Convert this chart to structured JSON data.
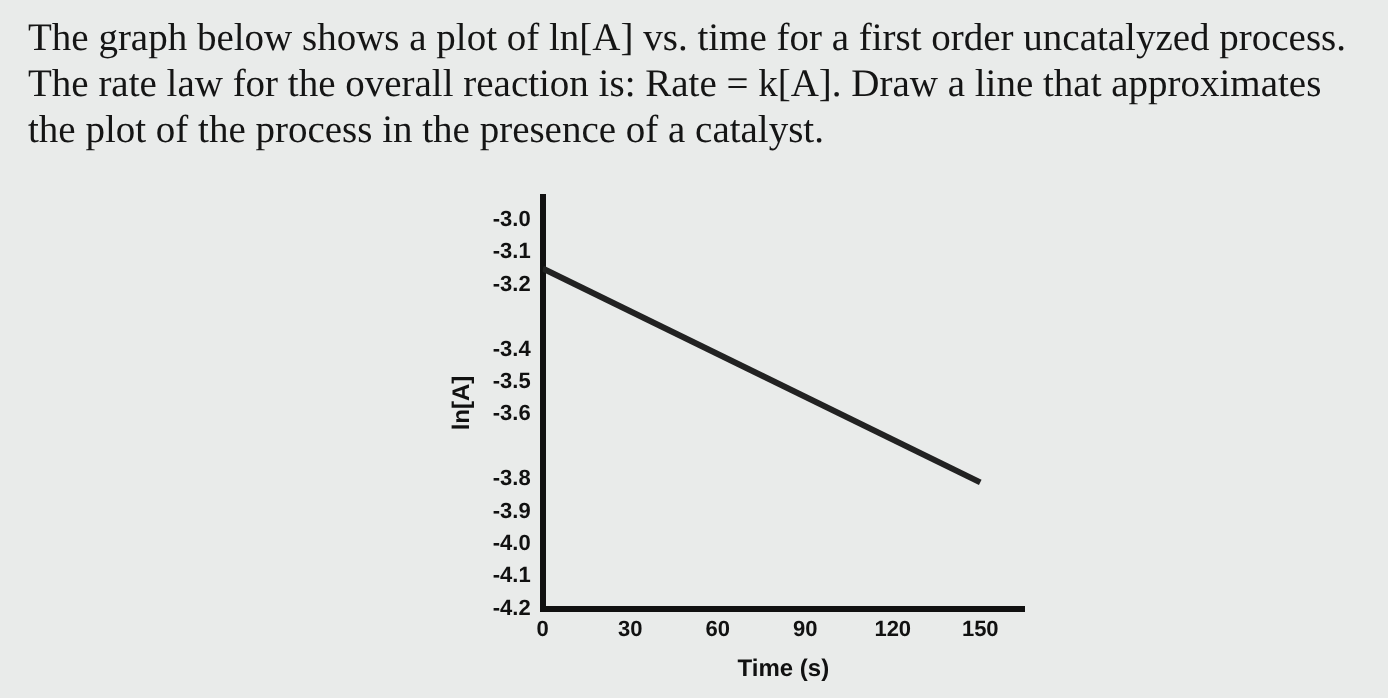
{
  "chart_data": {
    "type": "line",
    "title": "The graph below shows a plot of ln[A] vs. time for a first order uncatalyzed process.  The rate law for the overall reaction is: Rate = k[A].  Draw a line that approximates the plot of the process in the presence of a catalyst.",
    "xlabel": "Time (s)",
    "ylabel": "ln[A]",
    "x": [
      0,
      150
    ],
    "series": [
      {
        "color": "#222222",
        "values": [
          -3.15,
          -3.81
        ]
      }
    ],
    "xlim": [
      0,
      165
    ],
    "xticks": [
      0,
      30,
      60,
      90,
      120,
      150
    ],
    "ylim": [
      -4.2,
      -2.93
    ],
    "yticks": [
      {
        "value": -3.0,
        "label": "-3.0"
      },
      {
        "value": -3.1,
        "label": "-3.1"
      },
      {
        "value": -3.2,
        "label": "-3.2"
      },
      {
        "value": -3.4,
        "label": "-3.4"
      },
      {
        "value": -3.5,
        "label": "-3.5"
      },
      {
        "value": -3.6,
        "label": "-3.6"
      },
      {
        "value": -3.8,
        "label": "-3.8"
      },
      {
        "value": -3.9,
        "label": "-3.9"
      },
      {
        "value": -4.0,
        "label": "-4.0"
      },
      {
        "value": -4.1,
        "label": "-4.1"
      },
      {
        "value": -4.2,
        "label": "-4.2"
      }
    ],
    "grid": false,
    "legend": false,
    "marker": "none",
    "line_style": "solid"
  }
}
